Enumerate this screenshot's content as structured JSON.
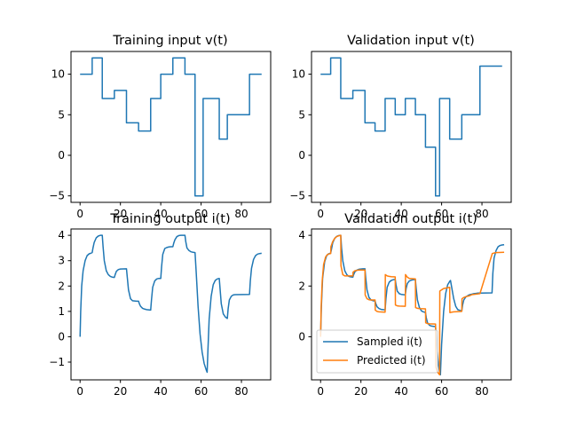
{
  "chart_data": [
    {
      "id": "training-input",
      "type": "line",
      "title": "Training input v(t)",
      "xlim": [
        -4.5,
        94.5
      ],
      "ylim": [
        -5.8,
        12.8
      ],
      "xticks": [
        0,
        20,
        40,
        60,
        80
      ],
      "yticks": [
        -5,
        0,
        5,
        10
      ],
      "series": [
        {
          "color": "#1f77b4",
          "x": [
            0,
            6,
            6,
            11,
            11,
            17,
            17,
            23,
            23,
            29,
            29,
            35,
            35,
            40,
            40,
            46,
            46,
            52,
            52,
            57,
            57,
            61,
            61,
            63,
            63,
            69,
            69,
            73,
            73,
            77,
            77,
            84,
            84,
            90
          ],
          "y": [
            10,
            10,
            12,
            12,
            7,
            7,
            8,
            8,
            4,
            4,
            3,
            3,
            7,
            7,
            10,
            10,
            12,
            12,
            10,
            10,
            -5,
            -5,
            7,
            7,
            7,
            7,
            2,
            2,
            5,
            5,
            5,
            5,
            10,
            10
          ]
        }
      ]
    },
    {
      "id": "validation-input",
      "type": "line",
      "title": "Validation input v(t)",
      "xlim": [
        -4.5,
        94.5
      ],
      "ylim": [
        -5.8,
        12.8
      ],
      "xticks": [
        0,
        20,
        40,
        60,
        80
      ],
      "yticks": [
        -5,
        0,
        5,
        10
      ],
      "series": [
        {
          "color": "#1f77b4",
          "x": [
            0,
            5,
            5,
            10,
            10,
            16,
            16,
            22,
            22,
            27,
            27,
            32,
            32,
            37,
            37,
            42,
            42,
            47,
            47,
            52,
            52,
            57,
            57,
            59,
            59,
            64,
            64,
            70,
            70,
            73,
            73,
            79,
            79,
            85,
            85,
            90
          ],
          "y": [
            10,
            10,
            12,
            12,
            7,
            7,
            8,
            8,
            4,
            4,
            3,
            3,
            7,
            7,
            5,
            5,
            7,
            7,
            5,
            5,
            1,
            1,
            -5,
            -5,
            7,
            7,
            2,
            2,
            5,
            5,
            5,
            5,
            11,
            11,
            11,
            11
          ]
        }
      ]
    },
    {
      "id": "training-output",
      "type": "line",
      "title": "Training output i(t)",
      "xlim": [
        -4.5,
        94.5
      ],
      "ylim": [
        -1.7,
        4.25
      ],
      "xticks": [
        0,
        20,
        40,
        60,
        80
      ],
      "yticks": [
        -1,
        0,
        1,
        2,
        3,
        4
      ],
      "series": [
        {
          "color": "#1f77b4",
          "x": [
            0,
            0.3,
            0.8,
            1.5,
            2.5,
            3.5,
            4.5,
            5.5,
            6,
            6.4,
            7,
            8,
            9,
            10,
            11,
            11.4,
            12,
            13,
            14,
            15,
            16,
            17,
            17.4,
            18,
            19,
            20,
            23,
            23.4,
            24,
            25,
            26,
            27,
            28,
            29,
            29.4,
            30,
            31,
            32,
            33,
            34,
            35,
            35.4,
            36,
            37,
            38,
            39,
            40,
            40.4,
            41,
            42,
            43,
            44,
            45,
            46,
            46.4,
            47,
            48,
            49,
            50,
            51,
            52,
            52.4,
            53,
            54,
            55,
            56,
            57,
            57.6,
            58.5,
            59.5,
            60.5,
            61.5,
            62.5,
            63,
            63.4,
            64,
            65,
            66,
            67,
            68,
            69,
            69.4,
            70,
            71,
            72,
            73,
            73.4,
            74,
            75,
            76,
            77,
            84,
            84.4,
            85,
            86,
            87,
            88,
            89,
            90
          ],
          "y": [
            0,
            1.0,
            2.0,
            2.6,
            3.0,
            3.2,
            3.27,
            3.3,
            3.32,
            3.5,
            3.72,
            3.9,
            3.97,
            4.0,
            4.0,
            3.55,
            3.0,
            2.6,
            2.45,
            2.38,
            2.35,
            2.34,
            2.45,
            2.58,
            2.65,
            2.67,
            2.68,
            2.35,
            1.85,
            1.5,
            1.42,
            1.41,
            1.4,
            1.4,
            1.3,
            1.2,
            1.12,
            1.09,
            1.07,
            1.06,
            1.05,
            1.45,
            1.95,
            2.2,
            2.28,
            2.3,
            2.3,
            2.75,
            3.25,
            3.48,
            3.52,
            3.54,
            3.55,
            3.55,
            3.68,
            3.82,
            3.95,
            3.99,
            4.0,
            4.0,
            4.0,
            3.75,
            3.5,
            3.4,
            3.35,
            3.33,
            3.32,
            2.5,
            1.2,
            0.1,
            -0.6,
            -1.05,
            -1.3,
            -1.4,
            -0.5,
            0.7,
            1.6,
            2.05,
            2.22,
            2.28,
            2.3,
            1.9,
            1.3,
            0.9,
            0.78,
            0.72,
            1.1,
            1.45,
            1.6,
            1.65,
            1.66,
            1.67,
            2.2,
            2.7,
            3.05,
            3.2,
            3.26,
            3.28,
            3.29
          ]
        }
      ]
    },
    {
      "id": "validation-output",
      "type": "line",
      "title": "Validation output i(t)",
      "xlim": [
        -4.5,
        94.5
      ],
      "ylim": [
        -1.7,
        4.25
      ],
      "xticks": [
        0,
        20,
        40,
        60,
        80
      ],
      "yticks": [
        0,
        2,
        4
      ],
      "legend": {
        "position": "lower-left",
        "entries": [
          "Sampled i(t)",
          "Predicted i(t)"
        ]
      },
      "series": [
        {
          "name": "Sampled i(t)",
          "color": "#1f77b4",
          "x": [
            0,
            0.4,
            1,
            2,
            3,
            4,
            5,
            5.4,
            6,
            7,
            8,
            9,
            10,
            10.4,
            11,
            12,
            13,
            14,
            15,
            16,
            16.4,
            17,
            18,
            19,
            20,
            21,
            22,
            22.4,
            23,
            24,
            25,
            26,
            27,
            27.4,
            28,
            29,
            30,
            31,
            32,
            32.4,
            33,
            34,
            35,
            36,
            37,
            37.4,
            38,
            39,
            40,
            41,
            42,
            42.4,
            43,
            44,
            45,
            46,
            47,
            47.4,
            48,
            49,
            50,
            51,
            52,
            52.4,
            53,
            54,
            55,
            56,
            57,
            57.6,
            58.3,
            59,
            59.4,
            60,
            61,
            62,
            63,
            64,
            64.4,
            65,
            66,
            67,
            68,
            69,
            70,
            70.4,
            71,
            72,
            73,
            73.4,
            74,
            75,
            76,
            77,
            78,
            79,
            85,
            85.4,
            86,
            87,
            88,
            89,
            90,
            91
          ],
          "y": [
            0,
            1.2,
            2.3,
            2.95,
            3.2,
            3.27,
            3.3,
            3.45,
            3.7,
            3.88,
            3.96,
            3.99,
            4.0,
            3.5,
            3.0,
            2.6,
            2.45,
            2.38,
            2.36,
            2.35,
            2.45,
            2.56,
            2.63,
            2.66,
            2.67,
            2.68,
            2.68,
            2.3,
            1.85,
            1.55,
            1.45,
            1.42,
            1.41,
            1.3,
            1.18,
            1.11,
            1.08,
            1.07,
            1.06,
            1.5,
            1.95,
            2.15,
            2.22,
            2.25,
            2.26,
            2.05,
            1.8,
            1.7,
            1.67,
            1.66,
            1.65,
            1.9,
            2.1,
            2.2,
            2.23,
            2.25,
            2.25,
            1.9,
            1.45,
            1.15,
            1.02,
            0.98,
            0.96,
            0.75,
            0.55,
            0.45,
            0.42,
            0.41,
            0.4,
            -0.3,
            -1.0,
            -1.4,
            -1.5,
            -0.3,
            1.0,
            1.7,
            2.05,
            2.18,
            2.22,
            1.95,
            1.5,
            1.2,
            1.07,
            1.04,
            1.02,
            1.25,
            1.45,
            1.57,
            1.62,
            1.64,
            1.66,
            1.68,
            1.7,
            1.71,
            1.72,
            1.72,
            1.73,
            2.5,
            3.1,
            3.4,
            3.55,
            3.6,
            3.62,
            3.63
          ]
        },
        {
          "name": "Predicted i(t)",
          "color": "#ff7f0e",
          "x": [
            0,
            0.3,
            0.8,
            1.5,
            2.5,
            3.5,
            5,
            5.1,
            6,
            7,
            8,
            9,
            10,
            10.1,
            11,
            12,
            13,
            14,
            16,
            16.1,
            17,
            18,
            19,
            22,
            22.1,
            23,
            24,
            25,
            27,
            27.1,
            28,
            29,
            32,
            32.1,
            33,
            34,
            35,
            37,
            37.1,
            38,
            39,
            42,
            42.1,
            43,
            44,
            47,
            47.1,
            48,
            49,
            52,
            52.1,
            53,
            54,
            57,
            57.1,
            58,
            59,
            59.1,
            60,
            61,
            64,
            64.1,
            65,
            66,
            70,
            70.1,
            71,
            72,
            73,
            73.1,
            74,
            75,
            79,
            85,
            85.1,
            86,
            87,
            91
          ],
          "y": [
            0,
            1.2,
            2.2,
            2.85,
            3.15,
            3.25,
            3.28,
            3.55,
            3.75,
            3.88,
            3.95,
            3.98,
            4.0,
            2.8,
            2.45,
            2.4,
            2.4,
            2.4,
            2.4,
            2.55,
            2.6,
            2.62,
            2.63,
            2.63,
            1.65,
            1.5,
            1.46,
            1.45,
            1.45,
            1.05,
            1.0,
            0.98,
            0.97,
            2.45,
            2.4,
            2.38,
            2.37,
            2.36,
            1.25,
            1.22,
            1.21,
            1.2,
            2.45,
            2.35,
            2.3,
            2.28,
            1.15,
            1.12,
            1.11,
            1.1,
            0.55,
            0.52,
            0.51,
            0.5,
            -1.2,
            -1.4,
            -1.5,
            1.8,
            1.85,
            1.9,
            1.95,
            0.95,
            0.97,
            0.98,
            1.0,
            1.5,
            1.55,
            1.58,
            1.6,
            1.6,
            1.62,
            1.66,
            1.7,
            3.25,
            3.28,
            3.3,
            3.32,
            3.33
          ]
        }
      ]
    }
  ]
}
